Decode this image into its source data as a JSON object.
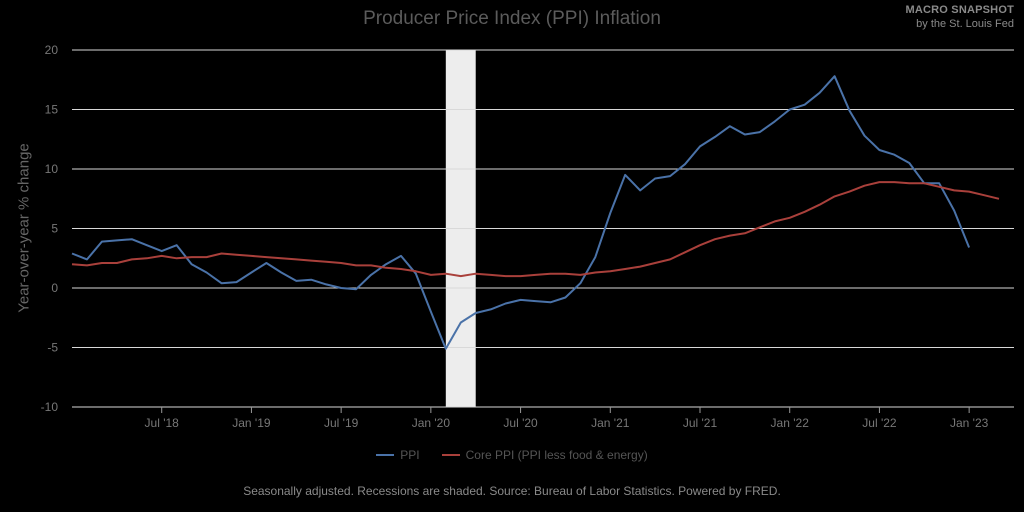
{
  "brand": {
    "name": "MACRO SNAPSHOT",
    "subtitle": "by the St. Louis Fed"
  },
  "footer": "Seasonally adjusted. Recessions are shaded. Source: Bureau of Labor Statistics. Powered by FRED.",
  "chart_data": {
    "type": "line",
    "title": "Producer Price Index (PPI) Inflation",
    "ylabel": "Year-over-year % change",
    "xlabel": "",
    "ylim": [
      -10,
      20
    ],
    "yticks": [
      -10,
      -5,
      0,
      5,
      10,
      15,
      20
    ],
    "xlim": [
      "2018-01",
      "2023-04"
    ],
    "xticks": [
      {
        "label": "Jul '18",
        "date": "2018-07"
      },
      {
        "label": "Jan '19",
        "date": "2019-01"
      },
      {
        "label": "Jul '19",
        "date": "2019-07"
      },
      {
        "label": "Jan '20",
        "date": "2020-01"
      },
      {
        "label": "Jul '20",
        "date": "2020-07"
      },
      {
        "label": "Jan '21",
        "date": "2021-01"
      },
      {
        "label": "Jul '21",
        "date": "2021-07"
      },
      {
        "label": "Jan '22",
        "date": "2022-01"
      },
      {
        "label": "Jul '22",
        "date": "2022-07"
      },
      {
        "label": "Jan '23",
        "date": "2023-01"
      }
    ],
    "recession": {
      "start": "2020-02",
      "end": "2020-04"
    },
    "grid": true,
    "legend_position": "bottom",
    "series": [
      {
        "name": "PPI",
        "color": "#4a72a8",
        "x": [
          "2018-01",
          "2018-02",
          "2018-03",
          "2018-04",
          "2018-05",
          "2018-06",
          "2018-07",
          "2018-08",
          "2018-09",
          "2018-10",
          "2018-11",
          "2018-12",
          "2019-01",
          "2019-02",
          "2019-03",
          "2019-04",
          "2019-05",
          "2019-06",
          "2019-07",
          "2019-08",
          "2019-09",
          "2019-10",
          "2019-11",
          "2019-12",
          "2020-01",
          "2020-02",
          "2020-03",
          "2020-04",
          "2020-05",
          "2020-06",
          "2020-07",
          "2020-08",
          "2020-09",
          "2020-10",
          "2020-11",
          "2020-12",
          "2021-01",
          "2021-02",
          "2021-03",
          "2021-04",
          "2021-05",
          "2021-06",
          "2021-07",
          "2021-08",
          "2021-09",
          "2021-10",
          "2021-11",
          "2021-12",
          "2022-01",
          "2022-02",
          "2022-03",
          "2022-04",
          "2022-05",
          "2022-06",
          "2022-07",
          "2022-08",
          "2022-09",
          "2022-10",
          "2022-11",
          "2022-12",
          "2023-01",
          "2023-02",
          "2023-03"
        ],
        "values": [
          2.9,
          2.4,
          3.9,
          4.0,
          4.1,
          3.6,
          3.1,
          3.6,
          2.0,
          1.3,
          0.4,
          0.5,
          1.3,
          2.1,
          1.3,
          0.6,
          0.7,
          0.3,
          0.0,
          -0.1,
          1.1,
          2.0,
          2.7,
          1.2,
          -2.0,
          -5.1,
          -2.9,
          -2.1,
          -1.8,
          -1.3,
          -1.0,
          -1.1,
          -1.2,
          -0.8,
          0.4,
          2.6,
          6.3,
          9.5,
          8.2,
          9.2,
          9.4,
          10.4,
          11.9,
          12.7,
          13.6,
          12.9,
          13.1,
          14.0,
          15.0,
          15.4,
          16.4,
          17.8,
          14.9,
          12.8,
          11.6,
          11.2,
          10.5,
          8.8,
          8.8,
          6.5,
          3.4,
          null,
          null
        ]
      },
      {
        "name": "Core PPI (PPI less food & energy)",
        "color": "#a9403b",
        "x": [
          "2018-01",
          "2018-02",
          "2018-03",
          "2018-04",
          "2018-05",
          "2018-06",
          "2018-07",
          "2018-08",
          "2018-09",
          "2018-10",
          "2018-11",
          "2018-12",
          "2019-01",
          "2019-02",
          "2019-03",
          "2019-04",
          "2019-05",
          "2019-06",
          "2019-07",
          "2019-08",
          "2019-09",
          "2019-10",
          "2019-11",
          "2019-12",
          "2020-01",
          "2020-02",
          "2020-03",
          "2020-04",
          "2020-05",
          "2020-06",
          "2020-07",
          "2020-08",
          "2020-09",
          "2020-10",
          "2020-11",
          "2020-12",
          "2021-01",
          "2021-02",
          "2021-03",
          "2021-04",
          "2021-05",
          "2021-06",
          "2021-07",
          "2021-08",
          "2021-09",
          "2021-10",
          "2021-11",
          "2021-12",
          "2022-01",
          "2022-02",
          "2022-03",
          "2022-04",
          "2022-05",
          "2022-06",
          "2022-07",
          "2022-08",
          "2022-09",
          "2022-10",
          "2022-11",
          "2022-12",
          "2023-01",
          "2023-02",
          "2023-03"
        ],
        "values": [
          2.0,
          1.9,
          2.1,
          2.1,
          2.4,
          2.5,
          2.7,
          2.5,
          2.6,
          2.6,
          2.9,
          2.8,
          2.7,
          2.6,
          2.5,
          2.4,
          2.3,
          2.2,
          2.1,
          1.9,
          1.9,
          1.7,
          1.6,
          1.4,
          1.1,
          1.2,
          1.0,
          1.2,
          1.1,
          1.0,
          1.0,
          1.1,
          1.2,
          1.2,
          1.1,
          1.3,
          1.4,
          1.6,
          1.8,
          2.1,
          2.4,
          3.0,
          3.6,
          4.1,
          4.4,
          4.6,
          5.1,
          5.6,
          5.9,
          6.4,
          7.0,
          7.7,
          8.1,
          8.6,
          8.9,
          8.9,
          8.8,
          8.8,
          8.5,
          8.2,
          8.1,
          7.8,
          7.5
        ]
      }
    ]
  }
}
